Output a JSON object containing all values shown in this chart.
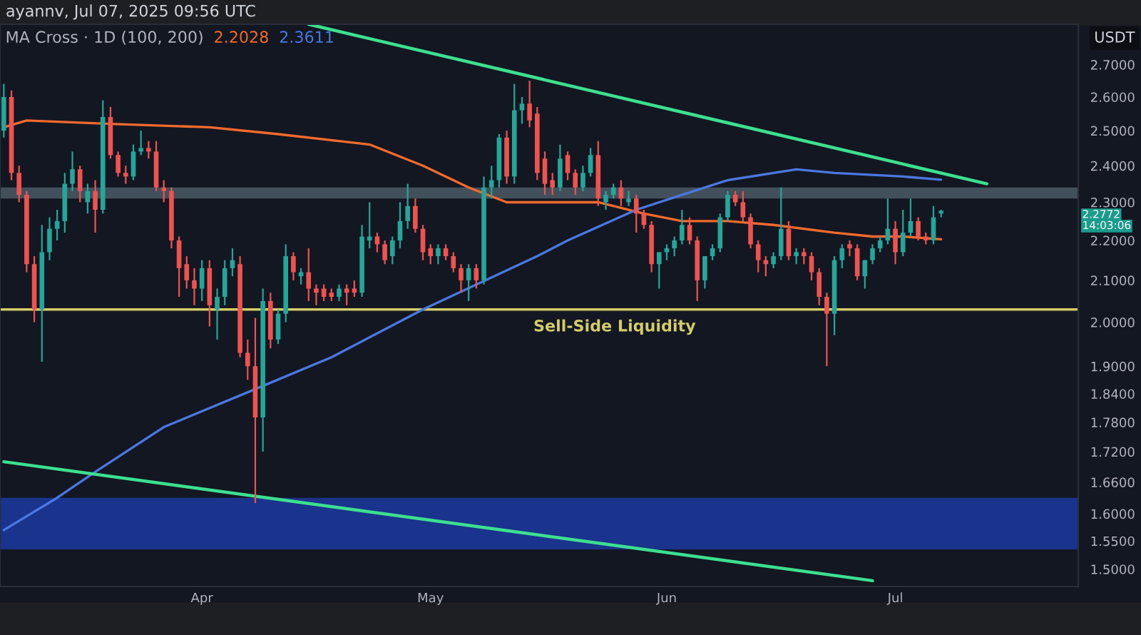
{
  "chart_data": {
    "type": "candlestick",
    "title": "ayannv, Jul 07, 2025 09:56 UTC",
    "subtitle": "MA Cross · 1D (100, 200)",
    "ylabel": "USDT",
    "log": true,
    "x": [
      "2025-03-06",
      "2025-03-07",
      "2025-03-08",
      "2025-03-09",
      "2025-03-10",
      "2025-03-11",
      "2025-03-12",
      "2025-03-13",
      "2025-03-14",
      "2025-03-15",
      "2025-03-16",
      "2025-03-17",
      "2025-03-18",
      "2025-03-19",
      "2025-03-20",
      "2025-03-21",
      "2025-03-22",
      "2025-03-23",
      "2025-03-24",
      "2025-03-25",
      "2025-03-26",
      "2025-03-27",
      "2025-03-28",
      "2025-03-29",
      "2025-03-30",
      "2025-03-31",
      "2025-04-01",
      "2025-04-02",
      "2025-04-03",
      "2025-04-04",
      "2025-04-05",
      "2025-04-06",
      "2025-04-07",
      "2025-04-08",
      "2025-04-09",
      "2025-04-10",
      "2025-04-11",
      "2025-04-12",
      "2025-04-13",
      "2025-04-14",
      "2025-04-15",
      "2025-04-16",
      "2025-04-17",
      "2025-04-18",
      "2025-04-19",
      "2025-04-20",
      "2025-04-21",
      "2025-04-22",
      "2025-04-23",
      "2025-04-24",
      "2025-04-25",
      "2025-04-26",
      "2025-04-27",
      "2025-04-28",
      "2025-04-29",
      "2025-04-30",
      "2025-05-01",
      "2025-05-02",
      "2025-05-03",
      "2025-05-04",
      "2025-05-05",
      "2025-05-06",
      "2025-05-07",
      "2025-05-08",
      "2025-05-09",
      "2025-05-10",
      "2025-05-11",
      "2025-05-12",
      "2025-05-13",
      "2025-05-14",
      "2025-05-15",
      "2025-05-16",
      "2025-05-17",
      "2025-05-18",
      "2025-05-19",
      "2025-05-20",
      "2025-05-21",
      "2025-05-22",
      "2025-05-23",
      "2025-05-24",
      "2025-05-25",
      "2025-05-26",
      "2025-05-27",
      "2025-05-28",
      "2025-05-29",
      "2025-05-30",
      "2025-05-31",
      "2025-06-01",
      "2025-06-02",
      "2025-06-03",
      "2025-06-04",
      "2025-06-05",
      "2025-06-06",
      "2025-06-07",
      "2025-06-08",
      "2025-06-09",
      "2025-06-10",
      "2025-06-11",
      "2025-06-12",
      "2025-06-13",
      "2025-06-14",
      "2025-06-15",
      "2025-06-16",
      "2025-06-17",
      "2025-06-18",
      "2025-06-19",
      "2025-06-20",
      "2025-06-21",
      "2025-06-22",
      "2025-06-23",
      "2025-06-24",
      "2025-06-25",
      "2025-06-26",
      "2025-06-27",
      "2025-06-28",
      "2025-06-29",
      "2025-06-30",
      "2025-07-01",
      "2025-07-02",
      "2025-07-03",
      "2025-07-04",
      "2025-07-05",
      "2025-07-06",
      "2025-07-07"
    ],
    "ohlc": [
      [
        2.5,
        2.64,
        2.48,
        2.6
      ],
      [
        2.6,
        2.62,
        2.36,
        2.38
      ],
      [
        2.38,
        2.4,
        2.3,
        2.32
      ],
      [
        2.32,
        2.33,
        2.12,
        2.14
      ],
      [
        2.14,
        2.16,
        2.0,
        2.03
      ],
      [
        2.03,
        2.24,
        1.91,
        2.17
      ],
      [
        2.17,
        2.26,
        2.15,
        2.23
      ],
      [
        2.23,
        2.28,
        2.2,
        2.25
      ],
      [
        2.25,
        2.38,
        2.22,
        2.35
      ],
      [
        2.35,
        2.44,
        2.33,
        2.39
      ],
      [
        2.39,
        2.4,
        2.3,
        2.33
      ],
      [
        2.3,
        2.35,
        2.27,
        2.33
      ],
      [
        2.33,
        2.36,
        2.22,
        2.28
      ],
      [
        2.28,
        2.59,
        2.27,
        2.54
      ],
      [
        2.54,
        2.57,
        2.42,
        2.43
      ],
      [
        2.43,
        2.44,
        2.37,
        2.38
      ],
      [
        2.38,
        2.4,
        2.35,
        2.37
      ],
      [
        2.37,
        2.46,
        2.36,
        2.44
      ],
      [
        2.44,
        2.5,
        2.43,
        2.45
      ],
      [
        2.45,
        2.47,
        2.42,
        2.44
      ],
      [
        2.44,
        2.47,
        2.33,
        2.34
      ],
      [
        2.34,
        2.36,
        2.3,
        2.33
      ],
      [
        2.33,
        2.34,
        2.18,
        2.2
      ],
      [
        2.2,
        2.21,
        2.06,
        2.13
      ],
      [
        2.14,
        2.16,
        2.08,
        2.1
      ],
      [
        2.1,
        2.13,
        2.04,
        2.08
      ],
      [
        2.08,
        2.15,
        2.05,
        2.13
      ],
      [
        2.13,
        2.15,
        1.99,
        2.04
      ],
      [
        2.03,
        2.08,
        1.96,
        2.06
      ],
      [
        2.06,
        2.15,
        2.04,
        2.13
      ],
      [
        2.13,
        2.18,
        2.11,
        2.15
      ],
      [
        2.14,
        2.16,
        1.92,
        1.93
      ],
      [
        1.93,
        1.96,
        1.87,
        1.9
      ],
      [
        1.9,
        2.01,
        1.62,
        1.79
      ],
      [
        1.79,
        2.08,
        1.72,
        2.05
      ],
      [
        2.05,
        2.07,
        1.94,
        1.96
      ],
      [
        1.96,
        2.03,
        1.95,
        2.02
      ],
      [
        2.02,
        2.19,
        2.0,
        2.16
      ],
      [
        2.16,
        2.17,
        2.1,
        2.12
      ],
      [
        2.11,
        2.13,
        2.09,
        2.12
      ],
      [
        2.12,
        2.18,
        2.05,
        2.08
      ],
      [
        2.08,
        2.09,
        2.04,
        2.07
      ],
      [
        2.08,
        2.09,
        2.05,
        2.06
      ],
      [
        2.07,
        2.08,
        2.05,
        2.06
      ],
      [
        2.06,
        2.09,
        2.05,
        2.08
      ],
      [
        2.08,
        2.09,
        2.04,
        2.07
      ],
      [
        2.08,
        2.1,
        2.06,
        2.07
      ],
      [
        2.07,
        2.24,
        2.06,
        2.21
      ],
      [
        2.2,
        2.3,
        2.18,
        2.21
      ],
      [
        2.21,
        2.22,
        2.17,
        2.19
      ],
      [
        2.19,
        2.2,
        2.14,
        2.15
      ],
      [
        2.16,
        2.21,
        2.14,
        2.2
      ],
      [
        2.2,
        2.3,
        2.18,
        2.25
      ],
      [
        2.25,
        2.35,
        2.23,
        2.29
      ],
      [
        2.29,
        2.31,
        2.22,
        2.23
      ],
      [
        2.23,
        2.24,
        2.15,
        2.17
      ],
      [
        2.18,
        2.19,
        2.14,
        2.16
      ],
      [
        2.16,
        2.19,
        2.14,
        2.18
      ],
      [
        2.18,
        2.19,
        2.15,
        2.16
      ],
      [
        2.16,
        2.17,
        2.12,
        2.13
      ],
      [
        2.13,
        2.14,
        2.07,
        2.1
      ],
      [
        2.1,
        2.14,
        2.05,
        2.13
      ],
      [
        2.13,
        2.14,
        2.08,
        2.1
      ],
      [
        2.1,
        2.37,
        2.09,
        2.34
      ],
      [
        2.34,
        2.4,
        2.31,
        2.36
      ],
      [
        2.36,
        2.49,
        2.34,
        2.48
      ],
      [
        2.48,
        2.5,
        2.35,
        2.37
      ],
      [
        2.37,
        2.64,
        2.35,
        2.56
      ],
      [
        2.56,
        2.6,
        2.52,
        2.58
      ],
      [
        2.58,
        2.65,
        2.51,
        2.53
      ],
      [
        2.55,
        2.57,
        2.36,
        2.38
      ],
      [
        2.42,
        2.44,
        2.32,
        2.35
      ],
      [
        2.36,
        2.38,
        2.32,
        2.34
      ],
      [
        2.34,
        2.46,
        2.33,
        2.42
      ],
      [
        2.43,
        2.44,
        2.36,
        2.38
      ],
      [
        2.38,
        2.39,
        2.32,
        2.34
      ],
      [
        2.34,
        2.4,
        2.33,
        2.38
      ],
      [
        2.38,
        2.45,
        2.37,
        2.43
      ],
      [
        2.43,
        2.47,
        2.29,
        2.31
      ],
      [
        2.3,
        2.33,
        2.28,
        2.32
      ],
      [
        2.32,
        2.35,
        2.31,
        2.34
      ],
      [
        2.34,
        2.36,
        2.29,
        2.31
      ],
      [
        2.3,
        2.33,
        2.29,
        2.31
      ],
      [
        2.31,
        2.32,
        2.22,
        2.27
      ],
      [
        2.27,
        2.28,
        2.23,
        2.24
      ],
      [
        2.24,
        2.25,
        2.12,
        2.14
      ],
      [
        2.14,
        2.17,
        2.08,
        2.17
      ],
      [
        2.17,
        2.19,
        2.15,
        2.18
      ],
      [
        2.18,
        2.21,
        2.16,
        2.2
      ],
      [
        2.2,
        2.28,
        2.19,
        2.24
      ],
      [
        2.24,
        2.26,
        2.19,
        2.2
      ],
      [
        2.2,
        2.21,
        2.05,
        2.1
      ],
      [
        2.1,
        2.16,
        2.08,
        2.16
      ],
      [
        2.16,
        2.19,
        2.15,
        2.18
      ],
      [
        2.18,
        2.27,
        2.17,
        2.26
      ],
      [
        2.26,
        2.33,
        2.25,
        2.32
      ],
      [
        2.32,
        2.33,
        2.29,
        2.3
      ],
      [
        2.3,
        2.33,
        2.25,
        2.26
      ],
      [
        2.26,
        2.27,
        2.18,
        2.19
      ],
      [
        2.19,
        2.2,
        2.12,
        2.15
      ],
      [
        2.15,
        2.16,
        2.11,
        2.14
      ],
      [
        2.14,
        2.17,
        2.13,
        2.16
      ],
      [
        2.16,
        2.34,
        2.15,
        2.23
      ],
      [
        2.23,
        2.25,
        2.15,
        2.16
      ],
      [
        2.16,
        2.18,
        2.14,
        2.17
      ],
      [
        2.17,
        2.18,
        2.14,
        2.16
      ],
      [
        2.16,
        2.17,
        2.1,
        2.12
      ],
      [
        2.12,
        2.13,
        2.04,
        2.06
      ],
      [
        2.06,
        2.07,
        1.9,
        2.02
      ],
      [
        2.02,
        2.16,
        1.97,
        2.15
      ],
      [
        2.15,
        2.19,
        2.13,
        2.18
      ],
      [
        2.19,
        2.2,
        2.16,
        2.18
      ],
      [
        2.18,
        2.19,
        2.1,
        2.11
      ],
      [
        2.11,
        2.15,
        2.08,
        2.15
      ],
      [
        2.15,
        2.19,
        2.14,
        2.18
      ],
      [
        2.18,
        2.21,
        2.17,
        2.2
      ],
      [
        2.2,
        2.31,
        2.19,
        2.23
      ],
      [
        2.23,
        2.25,
        2.14,
        2.17
      ],
      [
        2.17,
        2.28,
        2.16,
        2.22
      ],
      [
        2.22,
        2.31,
        2.21,
        2.25
      ],
      [
        2.25,
        2.26,
        2.2,
        2.21
      ],
      [
        2.21,
        2.22,
        2.19,
        2.2
      ],
      [
        2.2,
        2.29,
        2.19,
        2.26
      ],
      [
        2.27,
        2.28,
        2.26,
        2.2772
      ]
    ],
    "colors": [
      "#26a69a",
      "#ef5350",
      "#ef5350",
      "#ef5350",
      "#ef5350",
      "#26a69a",
      "#26a69a",
      "#26a69a",
      "#26a69a",
      "#26a69a",
      "#ef5350",
      "#26a69a",
      "#ef5350",
      "#26a69a",
      "#ef5350",
      "#ef5350",
      "#ef5350",
      "#26a69a",
      "#26a69a",
      "#ef5350",
      "#ef5350",
      "#ef5350",
      "#ef5350",
      "#ef5350",
      "#ef5350",
      "#ef5350",
      "#26a69a",
      "#ef5350",
      "#26a69a",
      "#26a69a",
      "#26a69a",
      "#ef5350",
      "#ef5350",
      "#ef5350",
      "#26a69a",
      "#ef5350",
      "#26a69a",
      "#26a69a",
      "#ef5350",
      "#26a69a",
      "#ef5350",
      "#ef5350",
      "#ef5350",
      "#ef5350",
      "#26a69a",
      "#ef5350",
      "#ef5350",
      "#26a69a",
      "#26a69a",
      "#ef5350",
      "#ef5350",
      "#26a69a",
      "#26a69a",
      "#26a69a",
      "#ef5350",
      "#ef5350",
      "#ef5350",
      "#26a69a",
      "#ef5350",
      "#ef5350",
      "#ef5350",
      "#26a69a",
      "#ef5350",
      "#26a69a",
      "#26a69a",
      "#26a69a",
      "#ef5350",
      "#26a69a",
      "#26a69a",
      "#ef5350",
      "#ef5350",
      "#ef5350",
      "#ef5350",
      "#26a69a",
      "#ef5350",
      "#ef5350",
      "#26a69a",
      "#26a69a",
      "#ef5350",
      "#26a69a",
      "#26a69a",
      "#ef5350",
      "#26a69a",
      "#ef5350",
      "#ef5350",
      "#ef5350",
      "#26a69a",
      "#26a69a",
      "#26a69a",
      "#26a69a",
      "#ef5350",
      "#ef5350",
      "#26a69a",
      "#26a69a",
      "#26a69a",
      "#26a69a",
      "#ef5350",
      "#ef5350",
      "#ef5350",
      "#ef5350",
      "#ef5350",
      "#26a69a",
      "#26a69a",
      "#ef5350",
      "#26a69a",
      "#ef5350",
      "#ef5350",
      "#ef5350",
      "#ef5350",
      "#26a69a",
      "#26a69a",
      "#ef5350",
      "#ef5350",
      "#26a69a",
      "#26a69a",
      "#26a69a",
      "#26a69a",
      "#ef5350",
      "#26a69a",
      "#26a69a",
      "#ef5350",
      "#ef5350",
      "#26a69a",
      "#26a69a"
    ],
    "series": [
      {
        "type": "line",
        "name": "2.2028",
        "color": "#f26b2d",
        "x": [
          "2025-03-06",
          "2025-03-09",
          "2025-03-20",
          "2025-04-02",
          "2025-04-11",
          "2025-04-23",
          "2025-04-30",
          "2025-05-06",
          "2025-05-11",
          "2025-05-23",
          "2025-05-29",
          "2025-06-03",
          "2025-06-09",
          "2025-06-15",
          "2025-06-23",
          "2025-06-28",
          "2025-07-02",
          "2025-07-07"
        ],
        "values": [
          2.51,
          2.53,
          2.52,
          2.51,
          2.49,
          2.46,
          2.4,
          2.34,
          2.3,
          2.3,
          2.27,
          2.25,
          2.25,
          2.24,
          2.22,
          2.21,
          2.21,
          2.2028
        ]
      },
      {
        "type": "line",
        "name": "2.3611",
        "color": "#4a78e0",
        "x": [
          "2025-03-06",
          "2025-03-13",
          "2025-03-18",
          "2025-03-27",
          "2025-04-08",
          "2025-04-18",
          "2025-04-30",
          "2025-05-15",
          "2025-05-19",
          "2025-05-28",
          "2025-06-03",
          "2025-06-09",
          "2025-06-18",
          "2025-06-23",
          "2025-07-02",
          "2025-07-07"
        ],
        "values": [
          1.57,
          1.63,
          1.68,
          1.77,
          1.85,
          1.92,
          2.03,
          2.16,
          2.2,
          2.28,
          2.32,
          2.36,
          2.39,
          2.38,
          2.37,
          2.3611
        ]
      },
      {
        "type": "line",
        "color": "#3de08f",
        "x": [
          "2025-04-15",
          "2025-07-13"
        ],
        "values": [
          2.83,
          2.35
        ]
      },
      {
        "type": "line",
        "color": "#3de08f",
        "x": [
          "2025-03-06",
          "2025-06-28"
        ],
        "values": [
          1.7,
          1.48
        ]
      }
    ],
    "bands": [
      {
        "axis": "y",
        "from": 1.535,
        "to": 1.63,
        "color": "#1c3aa0"
      },
      {
        "axis": "y",
        "from": 2.31,
        "to": 2.34,
        "color": "#4b5b66"
      }
    ],
    "ref_lines": [
      {
        "axis": "y",
        "value": 2.03,
        "label": "Sell-Side Liquidity",
        "color": "#d4cc6a"
      }
    ],
    "annotations": [
      "2.2772",
      "14:03:06"
    ],
    "xlim": [
      "2025-03-05T12:00",
      "2025-07-25"
    ],
    "xticks": [
      {
        "value": "2025-04-01",
        "label": "Apr"
      },
      {
        "value": "2025-05-01",
        "label": "May"
      },
      {
        "value": "2025-06-01",
        "label": "Jun"
      },
      {
        "value": "2025-07-01",
        "label": "Jul"
      }
    ],
    "ylim": [
      1.47,
      2.83
    ],
    "yticks": [
      {
        "value": 1.5,
        "label": "1.5000"
      },
      {
        "value": 1.55,
        "label": "1.5500"
      },
      {
        "value": 1.6,
        "label": "1.6000"
      },
      {
        "value": 1.66,
        "label": "1.6600"
      },
      {
        "value": 1.72,
        "label": "1.7200"
      },
      {
        "value": 1.78,
        "label": "1.7800"
      },
      {
        "value": 1.84,
        "label": "1.8400"
      },
      {
        "value": 1.9,
        "label": "1.9000"
      },
      {
        "value": 2.0,
        "label": "2.0000"
      },
      {
        "value": 2.1,
        "label": "2.1000"
      },
      {
        "value": 2.2,
        "label": "2.2000"
      },
      {
        "value": 2.3,
        "label": "2.3000"
      },
      {
        "value": 2.4,
        "label": "2.4000"
      },
      {
        "value": 2.5,
        "label": "2.5000"
      },
      {
        "value": 2.6,
        "label": "2.6000"
      },
      {
        "value": 2.7,
        "label": "2.7000"
      }
    ]
  }
}
